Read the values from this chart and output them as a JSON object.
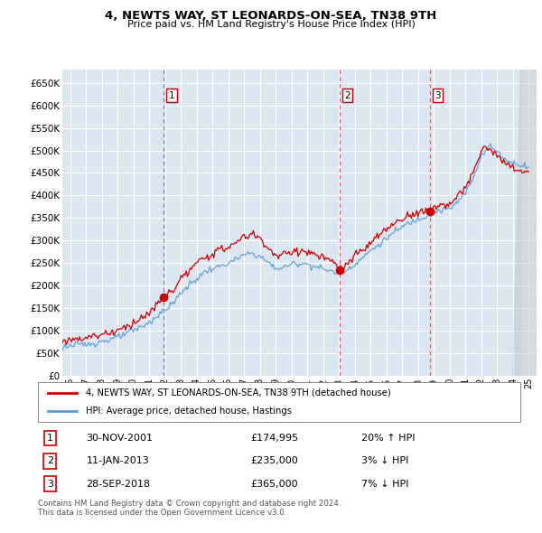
{
  "title": "4, NEWTS WAY, ST LEONARDS-ON-SEA, TN38 9TH",
  "subtitle": "Price paid vs. HM Land Registry's House Price Index (HPI)",
  "legend_line1": "4, NEWTS WAY, ST LEONARDS-ON-SEA, TN38 9TH (detached house)",
  "legend_line2": "HPI: Average price, detached house, Hastings",
  "sale_events": [
    {
      "num": 1,
      "date": "30-NOV-2001",
      "price": "£174,995",
      "rel": "20% ↑ HPI",
      "year": 2001.917
    },
    {
      "num": 2,
      "date": "11-JAN-2013",
      "price": "£235,000",
      "rel": "3% ↓ HPI",
      "year": 2013.04
    },
    {
      "num": 3,
      "date": "28-SEP-2018",
      "price": "£365,000",
      "rel": "7% ↓ HPI",
      "year": 2018.75
    }
  ],
  "sale_prices": [
    174995,
    235000,
    365000
  ],
  "footnote1": "Contains HM Land Registry data © Crown copyright and database right 2024.",
  "footnote2": "This data is licensed under the Open Government Licence v3.0.",
  "ylim": [
    0,
    680000
  ],
  "yticks": [
    0,
    50000,
    100000,
    150000,
    200000,
    250000,
    300000,
    350000,
    400000,
    450000,
    500000,
    550000,
    600000,
    650000
  ],
  "xlim_start": 1995.5,
  "xlim_end": 2025.5,
  "bg_color": "#dce6f0",
  "red_color": "#cc0000",
  "blue_color": "#5b9bd5",
  "grid_color": "#ffffff",
  "hatch_color": "#c0c0c0"
}
